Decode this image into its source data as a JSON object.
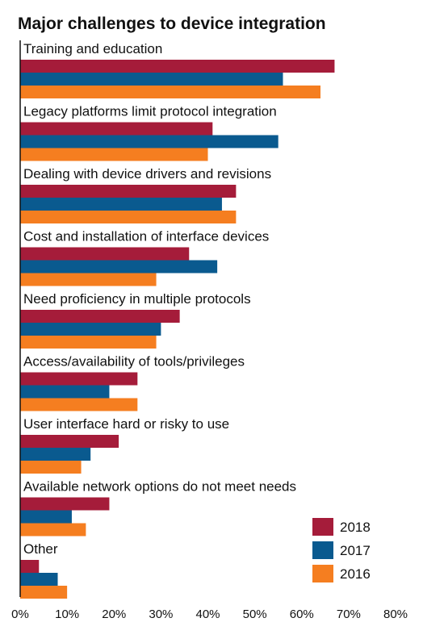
{
  "chart_data": {
    "type": "bar",
    "orientation": "horizontal",
    "title": "Major challenges to device integration",
    "categories": [
      "Training and education",
      "Legacy platforms limit protocol integration",
      "Dealing with device drivers and revisions",
      "Cost and installation of interface devices",
      "Need proficiency in multiple protocols",
      "Access/availability of tools/privileges",
      "User interface hard or risky to use",
      "Available network options do not meet needs",
      "Other"
    ],
    "series": [
      {
        "name": "2018",
        "color": "#a51c3a",
        "values": [
          67,
          41,
          46,
          36,
          34,
          25,
          21,
          19,
          4
        ]
      },
      {
        "name": "2017",
        "color": "#0a5a8f",
        "values": [
          56,
          55,
          43,
          42,
          30,
          19,
          15,
          11,
          8
        ]
      },
      {
        "name": "2016",
        "color": "#f57e20",
        "values": [
          64,
          40,
          46,
          29,
          29,
          25,
          13,
          14,
          10
        ]
      }
    ],
    "xlim": [
      0,
      80
    ],
    "xticks": [
      "0%",
      "10%",
      "20%",
      "30%",
      "40%",
      "50%",
      "60%",
      "70%",
      "80%"
    ],
    "xtick_values": [
      0,
      10,
      20,
      30,
      40,
      50,
      60,
      70,
      80
    ],
    "legend_placement": "bottom-right",
    "grid": false
  }
}
